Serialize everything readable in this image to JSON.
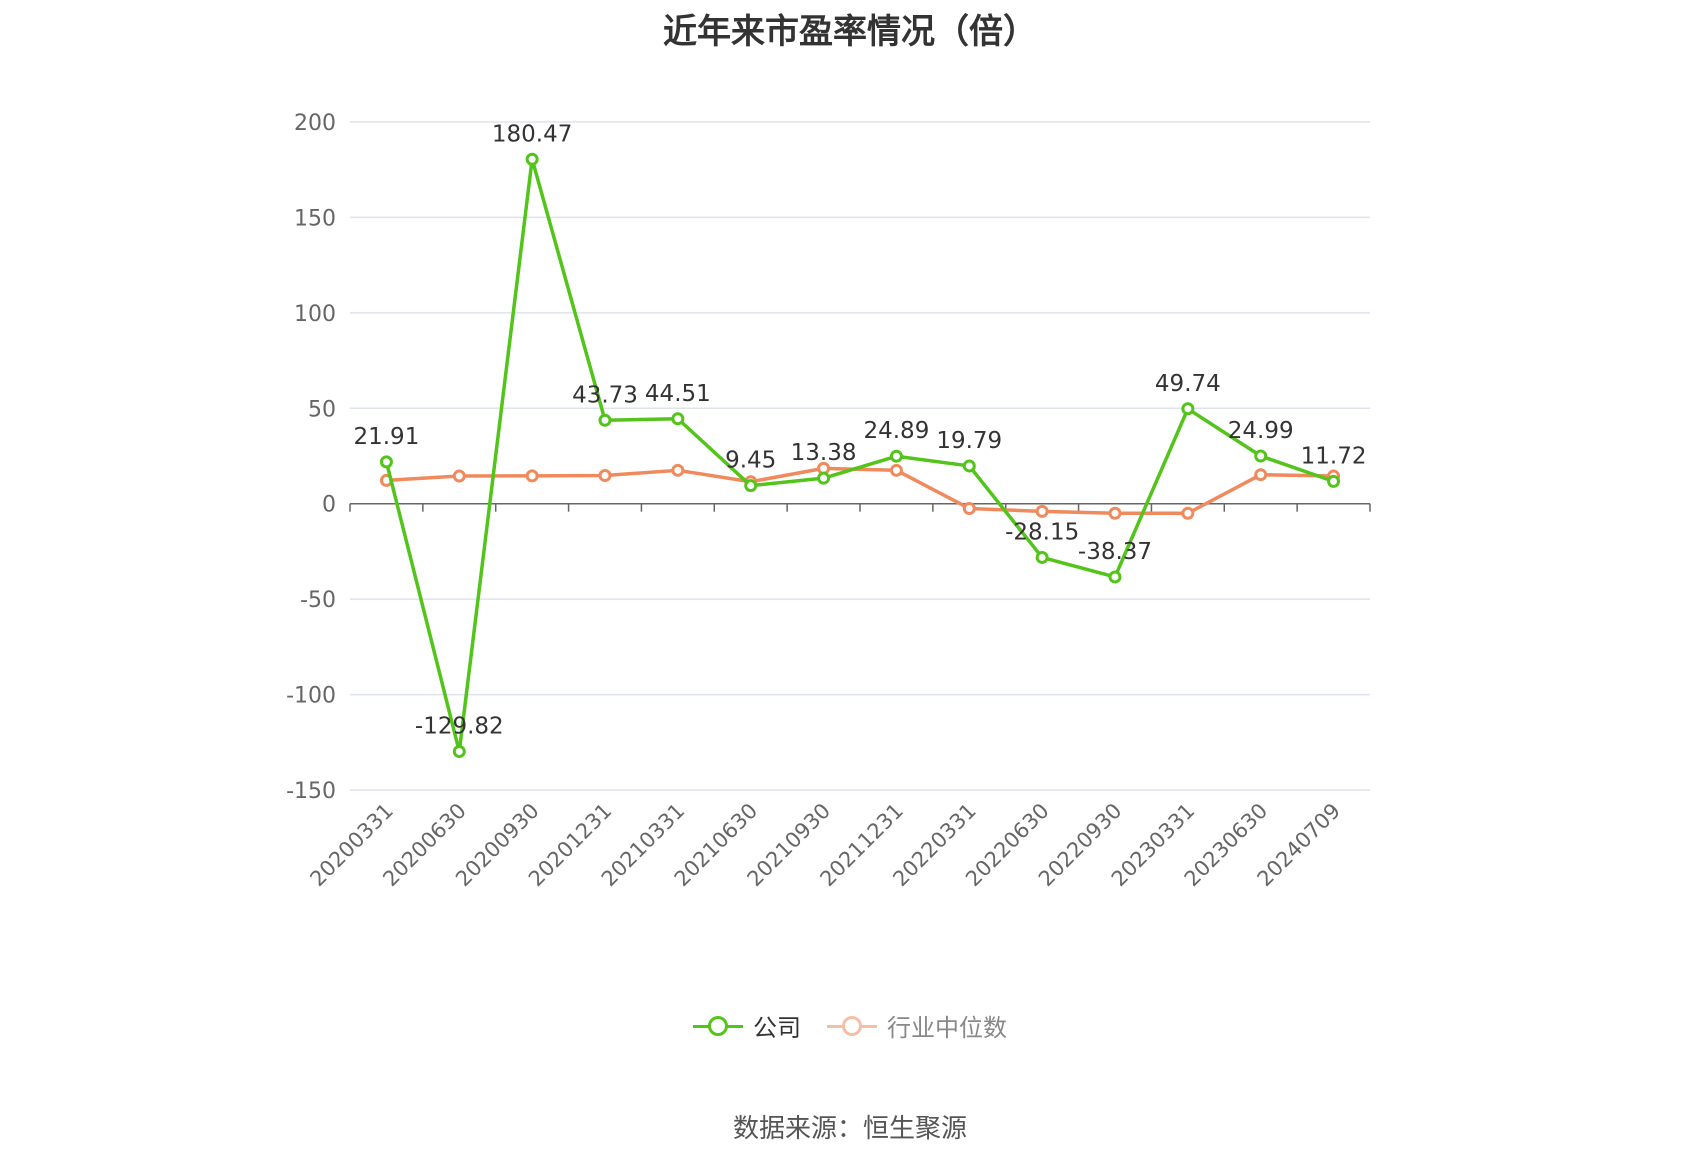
{
  "chart_data": {
    "type": "line",
    "title": "近年来市盈率情况（倍）",
    "categories": [
      "20200331",
      "20200630",
      "20200930",
      "20201231",
      "20210331",
      "20210630",
      "20210930",
      "20211231",
      "20220331",
      "20220630",
      "20220930",
      "20230331",
      "20230630",
      "20240709"
    ],
    "ylim": [
      -150,
      200
    ],
    "yticks": [
      200,
      150,
      100,
      50,
      0,
      -50,
      -100,
      -150
    ],
    "grid": true,
    "legend_position": "bottom",
    "series": [
      {
        "name": "公司",
        "color": "#52c41a",
        "values": [
          21.91,
          -129.82,
          180.47,
          43.73,
          44.51,
          9.45,
          13.38,
          24.89,
          19.79,
          -28.15,
          -38.37,
          49.74,
          24.99,
          11.72
        ],
        "show_labels": true
      },
      {
        "name": "行业中位数",
        "color": "#f08a5d",
        "values": [
          12.2,
          14.5,
          14.6,
          14.8,
          17.5,
          11.5,
          18.5,
          17.5,
          -2.5,
          -4.0,
          -5.0,
          -5.0,
          15.2,
          14.5
        ],
        "show_labels": false
      }
    ]
  },
  "source": "数据来源：恒生聚源"
}
